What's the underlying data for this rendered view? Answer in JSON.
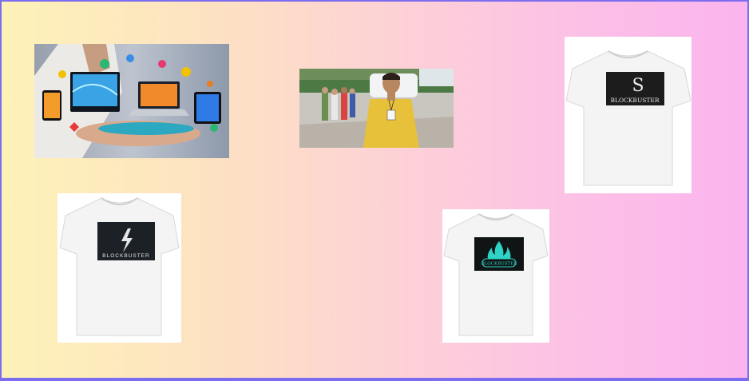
{
  "gallery": {
    "items": [
      {
        "name": "tech-devices-image",
        "icon": "devices-hand-image"
      },
      {
        "name": "tour-guide-image",
        "icon": "tour-group-photo"
      },
      {
        "name": "tshirt-snake-image",
        "label": "BLOCKBUSTER",
        "logo": "S"
      },
      {
        "name": "tshirt-lightning-image",
        "label": "BLOCKBUSTER",
        "logo": "lightning"
      },
      {
        "name": "tshirt-flame-image",
        "label": "BLOCKBUSTER",
        "logo": "flame"
      }
    ]
  },
  "colors": {
    "frame_border": "#7c6cf0",
    "gradient_start": "#fdf2b8",
    "gradient_end": "#fbb4ee",
    "flame_teal": "#2fd3c6"
  }
}
